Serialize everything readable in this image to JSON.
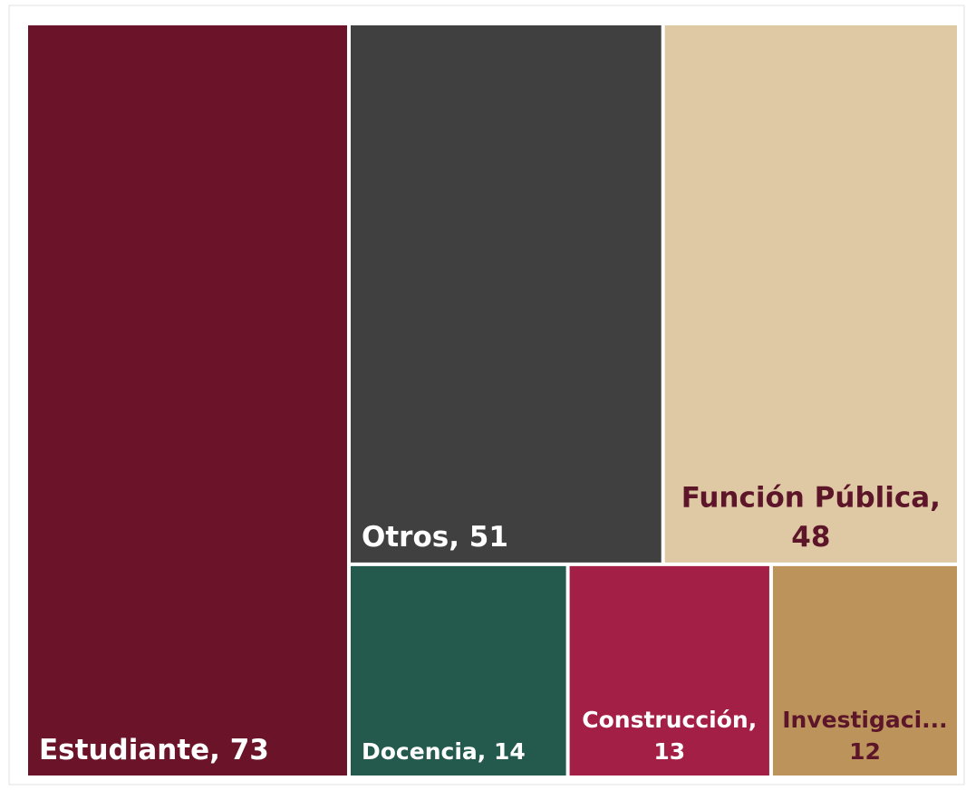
{
  "chart_data": {
    "type": "treemap",
    "values": [
      73,
      51,
      48,
      14,
      13,
      12
    ],
    "value_labels": [
      [
        "Estudiante, 73"
      ],
      [
        "Otros, 51"
      ],
      [
        "Función Pública,",
        "48"
      ],
      [
        "Docencia, 14"
      ],
      [
        "Construcción,",
        "13"
      ],
      [
        "Investigaci...",
        "12"
      ]
    ],
    "colors": [
      "#6b1429",
      "#404040",
      "#dfc8a4",
      "#245a4e",
      "#a31f45",
      "#bc945b"
    ],
    "label_colors": [
      "#ffffff",
      "#ffffff",
      "#5c1529",
      "#ffffff",
      "#ffffff",
      "#5c1529"
    ]
  }
}
